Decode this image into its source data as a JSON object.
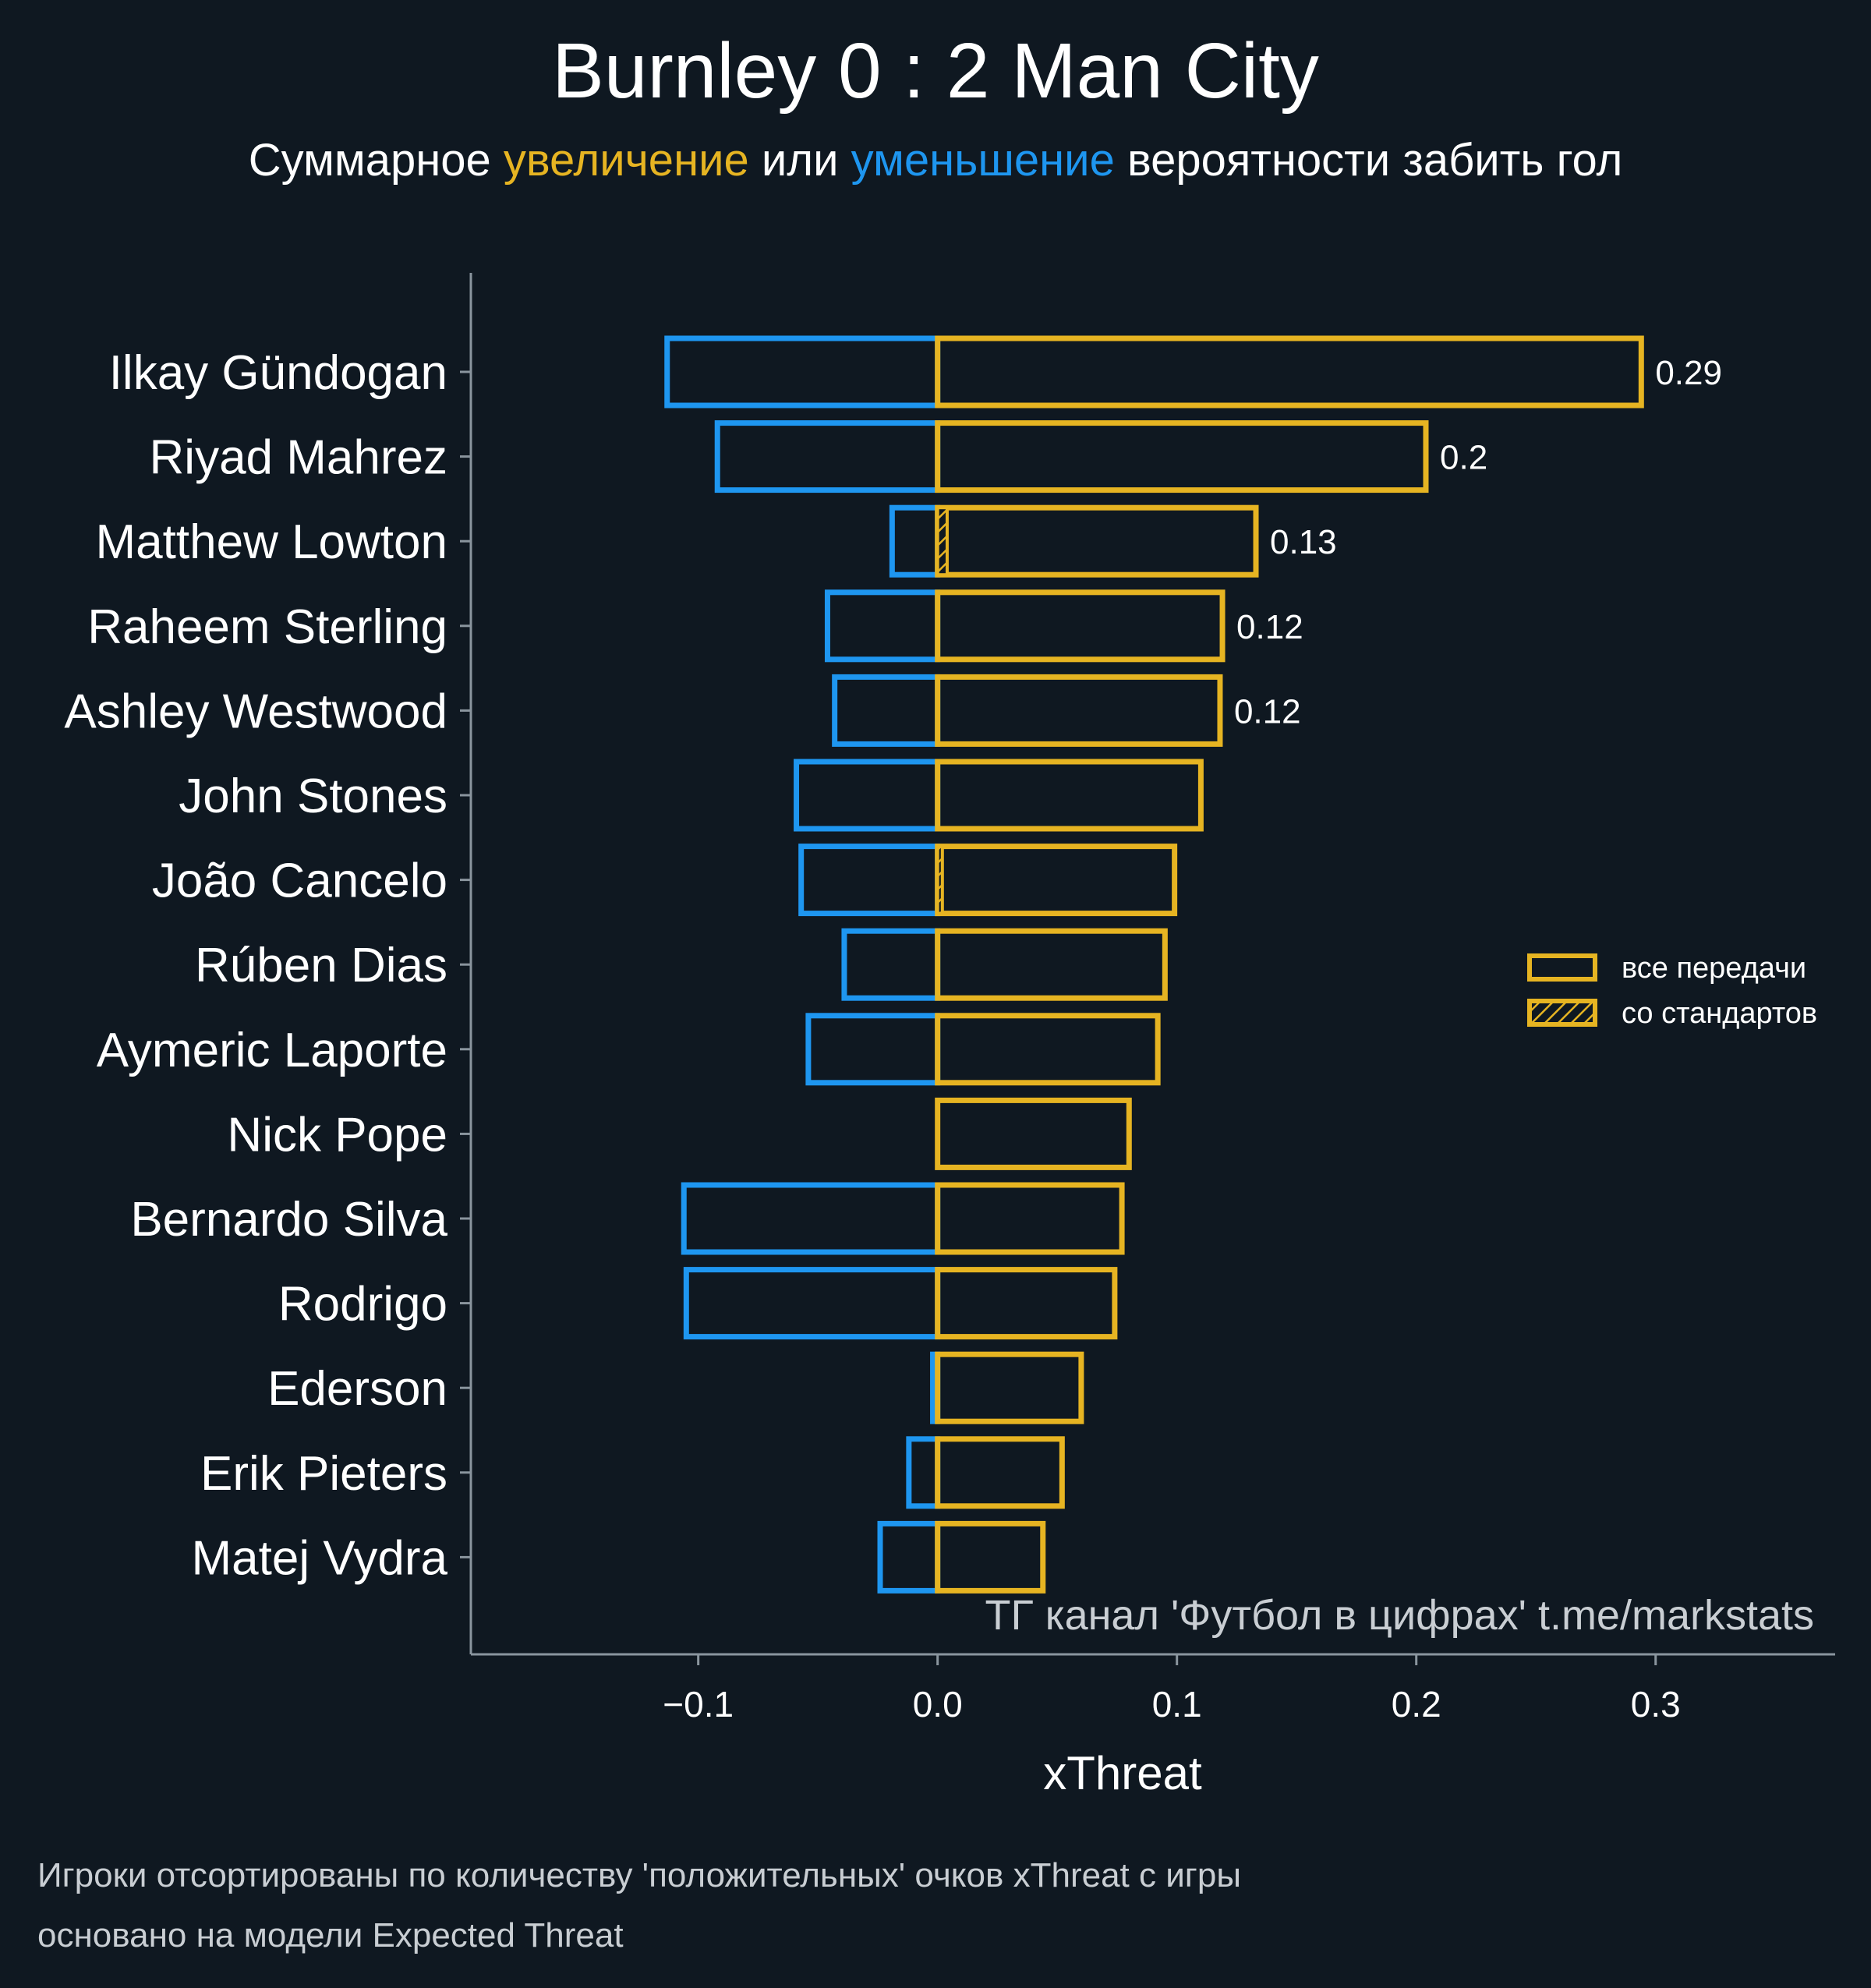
{
  "colors": {
    "background": "#0f1821",
    "positive": "#e6b422",
    "negative": "#1e96f0",
    "axis": "#8a959e",
    "text": "#ffffff",
    "muted": "#c9ced3"
  },
  "header": {
    "title": "Burnley 0 : 2 Man City",
    "subtitle_parts": [
      {
        "text": "Суммарное ",
        "role": "plain"
      },
      {
        "text": "увеличение",
        "role": "positive"
      },
      {
        "text": " или ",
        "role": "plain"
      },
      {
        "text": "уменьшение",
        "role": "negative"
      },
      {
        "text": " вероятности забить гол",
        "role": "plain"
      }
    ]
  },
  "chart_data": {
    "type": "bar",
    "orientation": "horizontal",
    "categories": [
      "Ilkay Gündogan",
      "Riyad Mahrez",
      "Matthew Lowton",
      "Raheem Sterling",
      "Ashley Westwood",
      "John Stones",
      "João Cancelo",
      "Rúben Dias",
      "Aymeric Laporte",
      "Nick Pope",
      "Bernardo Silva",
      "Rodrigo",
      "Ederson",
      "Erik Pieters",
      "Matej Vydra"
    ],
    "series": [
      {
        "role": "positive",
        "values": [
          0.294,
          0.204,
          0.133,
          0.119,
          0.118,
          0.11,
          0.099,
          0.095,
          0.092,
          0.08,
          0.077,
          0.074,
          0.06,
          0.052,
          0.044
        ]
      },
      {
        "role": "negative",
        "values": [
          -0.113,
          -0.092,
          -0.019,
          -0.046,
          -0.043,
          -0.059,
          -0.057,
          -0.039,
          -0.054,
          0.0,
          -0.106,
          -0.105,
          -0.002,
          -0.012,
          -0.024
        ]
      }
    ],
    "positive_setpiece_values": [
      0,
      0,
      0.004,
      0,
      0,
      0,
      0.002,
      0,
      0,
      0,
      0,
      0,
      0,
      0,
      0
    ],
    "value_labels": [
      "0.29",
      "0.2",
      "0.13",
      "0.12",
      "0.12",
      "",
      "",
      "",
      "",
      "",
      "",
      "",
      "",
      "",
      ""
    ],
    "xlabel": "xThreat",
    "ylabel": "",
    "xlim": [
      -0.195,
      0.375
    ],
    "xticks": [
      -0.1,
      0.0,
      0.1,
      0.2,
      0.3
    ],
    "xtick_labels": [
      "−0.1",
      "0.0",
      "0.1",
      "0.2",
      "0.3"
    ],
    "grid": false,
    "legend": {
      "position": "right",
      "entries": [
        {
          "label": "все передачи",
          "style": "outline"
        },
        {
          "label": "со стандартов",
          "style": "hatched"
        }
      ]
    },
    "watermark": "ТГ канал 'Футбол в цифрах'  t.me/markstats"
  },
  "footer": {
    "line1": "Игроки отсортированы по количеству 'положительных' очков xThreat с игры",
    "line2": "основано на модели Expected Threat"
  }
}
